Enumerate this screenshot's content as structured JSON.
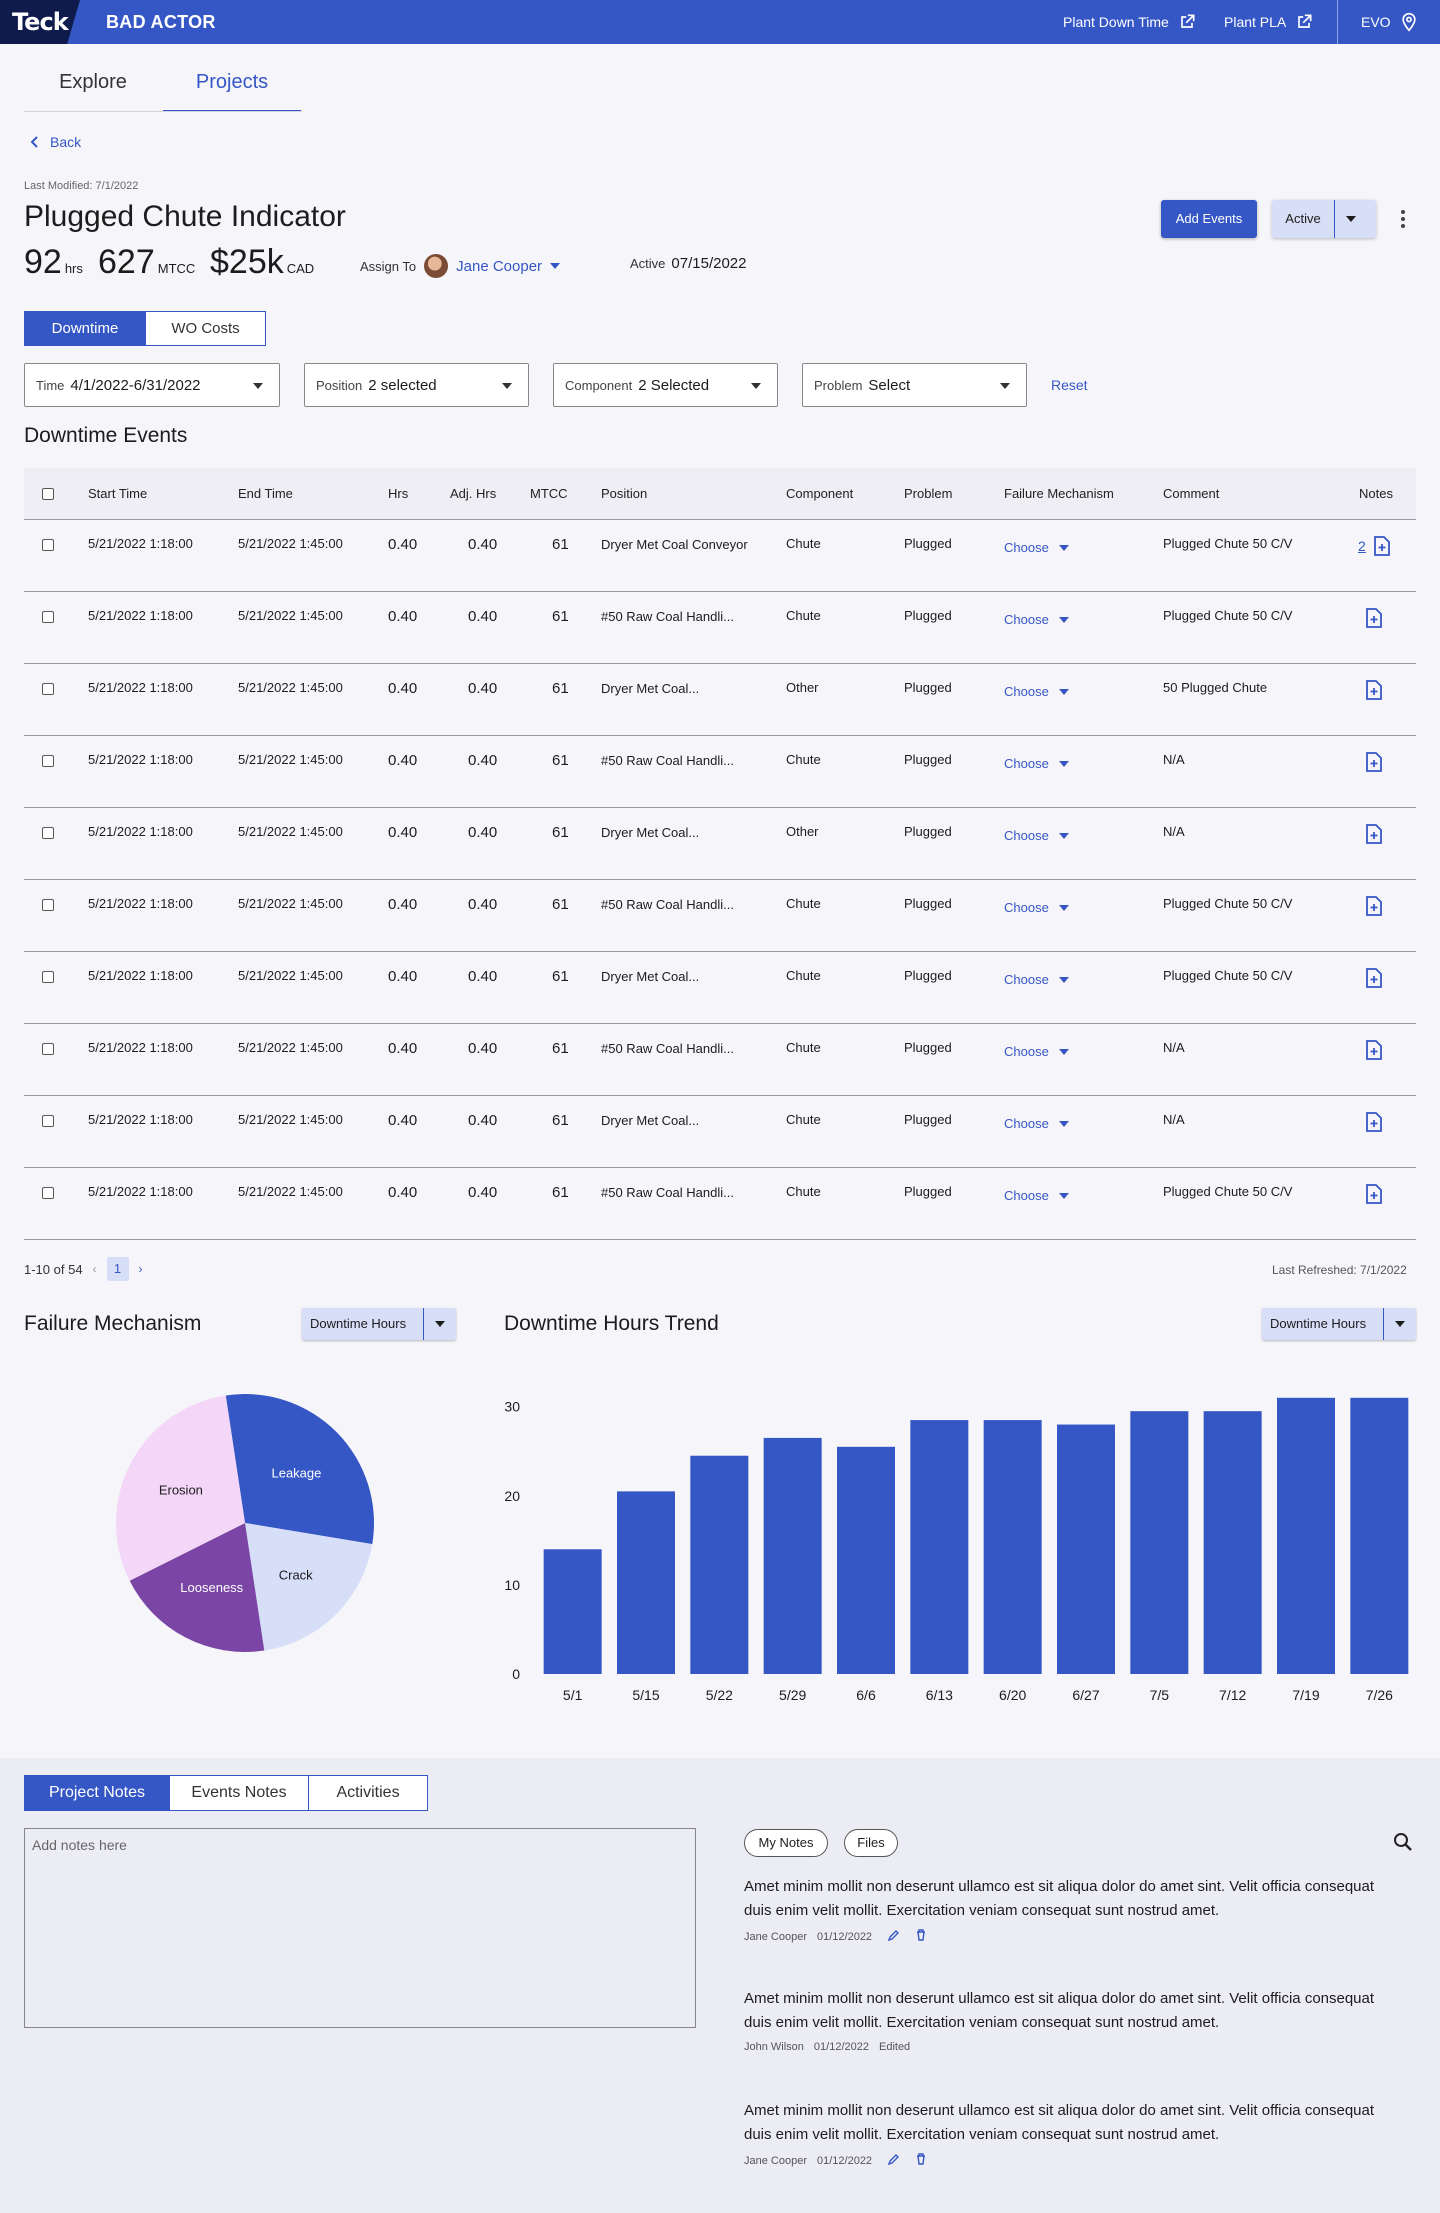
{
  "header": {
    "logo": "Teck",
    "app_title": "BAD ACTOR",
    "links": [
      {
        "label": "Plant Down Time",
        "icon": "external-link-icon"
      },
      {
        "label": "Plant PLA",
        "icon": "external-link-icon"
      },
      {
        "label": "EVO",
        "icon": "location-pin-icon"
      }
    ]
  },
  "nav": {
    "tabs": [
      "Explore",
      "Projects"
    ],
    "active": "Projects"
  },
  "back_label": "Back",
  "project": {
    "last_modified": "Last Modified: 7/1/2022",
    "title": "Plugged Chute Indicator",
    "metrics": [
      {
        "value": "92",
        "unit": "hrs"
      },
      {
        "value": "627",
        "unit": "MTCC"
      },
      {
        "value": "$25k",
        "unit": "CAD"
      }
    ],
    "assign_label": "Assign To",
    "assignee": "Jane Cooper",
    "active_label": "Active",
    "active_date": "07/15/2022",
    "add_events": "Add Events",
    "status": "Active"
  },
  "view_toggle": [
    "Downtime",
    "WO Costs"
  ],
  "filters": [
    {
      "label": "Time",
      "value": "4/1/2022-6/31/2022"
    },
    {
      "label": "Position",
      "value": "2 selected"
    },
    {
      "label": "Component",
      "value": "2 Selected"
    },
    {
      "label": "Problem",
      "value": "Select"
    }
  ],
  "reset_label": "Reset",
  "events": {
    "title": "Downtime Events",
    "columns": [
      "Start Time",
      "End Time",
      "Hrs",
      "Adj. Hrs",
      "MTCC",
      "Position",
      "Component",
      "Problem",
      "Failure Mechanism",
      "Comment",
      "Notes"
    ],
    "rows": [
      {
        "start": "5/21/2022 1:18:00",
        "end": "5/21/2022 1:45:00",
        "hrs": "0.40",
        "adj": "0.40",
        "mtcc": "61",
        "position": "Dryer Met Coal Conveyor",
        "component": "Chute",
        "problem": "Plugged",
        "mechanism": "Choose",
        "comment": "Plugged Chute 50 C/V",
        "notes": "2"
      },
      {
        "start": "5/21/2022 1:18:00",
        "end": "5/21/2022 1:45:00",
        "hrs": "0.40",
        "adj": "0.40",
        "mtcc": "61",
        "position": "#50 Raw Coal Handli...",
        "component": "Chute",
        "problem": "Plugged",
        "mechanism": "Choose",
        "comment": "Plugged Chute 50 C/V",
        "notes": ""
      },
      {
        "start": "5/21/2022 1:18:00",
        "end": "5/21/2022 1:45:00",
        "hrs": "0.40",
        "adj": "0.40",
        "mtcc": "61",
        "position": "Dryer Met Coal...",
        "component": "Other",
        "problem": "Plugged",
        "mechanism": "Choose",
        "comment": "50 Plugged Chute",
        "notes": ""
      },
      {
        "start": "5/21/2022 1:18:00",
        "end": "5/21/2022 1:45:00",
        "hrs": "0.40",
        "adj": "0.40",
        "mtcc": "61",
        "position": "#50 Raw Coal Handli...",
        "component": "Chute",
        "problem": "Plugged",
        "mechanism": "Choose",
        "comment": "N/A",
        "notes": ""
      },
      {
        "start": "5/21/2022 1:18:00",
        "end": "5/21/2022 1:45:00",
        "hrs": "0.40",
        "adj": "0.40",
        "mtcc": "61",
        "position": "Dryer Met Coal...",
        "component": "Other",
        "problem": "Plugged",
        "mechanism": "Choose",
        "comment": "N/A",
        "notes": ""
      },
      {
        "start": "5/21/2022 1:18:00",
        "end": "5/21/2022 1:45:00",
        "hrs": "0.40",
        "adj": "0.40",
        "mtcc": "61",
        "position": "#50 Raw Coal Handli...",
        "component": "Chute",
        "problem": "Plugged",
        "mechanism": "Choose",
        "comment": "Plugged Chute 50 C/V",
        "notes": ""
      },
      {
        "start": "5/21/2022 1:18:00",
        "end": "5/21/2022 1:45:00",
        "hrs": "0.40",
        "adj": "0.40",
        "mtcc": "61",
        "position": "Dryer Met Coal...",
        "component": "Chute",
        "problem": "Plugged",
        "mechanism": "Choose",
        "comment": "Plugged Chute 50 C/V",
        "notes": ""
      },
      {
        "start": "5/21/2022 1:18:00",
        "end": "5/21/2022 1:45:00",
        "hrs": "0.40",
        "adj": "0.40",
        "mtcc": "61",
        "position": "#50 Raw Coal Handli...",
        "component": "Chute",
        "problem": "Plugged",
        "mechanism": "Choose",
        "comment": "N/A",
        "notes": ""
      },
      {
        "start": "5/21/2022 1:18:00",
        "end": "5/21/2022 1:45:00",
        "hrs": "0.40",
        "adj": "0.40",
        "mtcc": "61",
        "position": "Dryer Met Coal...",
        "component": "Chute",
        "problem": "Plugged",
        "mechanism": "Choose",
        "comment": "N/A",
        "notes": ""
      },
      {
        "start": "5/21/2022 1:18:00",
        "end": "5/21/2022 1:45:00",
        "hrs": "0.40",
        "adj": "0.40",
        "mtcc": "61",
        "position": "#50 Raw Coal Handli...",
        "component": "Chute",
        "problem": "Plugged",
        "mechanism": "Choose",
        "comment": "Plugged Chute 50 C/V",
        "notes": ""
      }
    ],
    "range_text": "1-10 of 54",
    "page": "1",
    "last_refreshed": "Last Refreshed: 7/1/2022"
  },
  "failure_chart": {
    "title": "Failure Mechanism",
    "metric": "Downtime Hours"
  },
  "trend_chart": {
    "title": "Downtime Hours Trend",
    "metric": "Downtime Hours"
  },
  "chart_data": [
    {
      "type": "pie",
      "title": "Failure Mechanism",
      "categories": [
        "Leakage",
        "Crack",
        "Looseness",
        "Erosion"
      ],
      "values": [
        30,
        20,
        20,
        30
      ],
      "colors": [
        "#3557c5",
        "#d7def7",
        "#7b45a6",
        "#f3d6f8"
      ]
    },
    {
      "type": "bar",
      "title": "Downtime Hours Trend",
      "categories": [
        "5/1",
        "5/15",
        "5/22",
        "5/29",
        "6/6",
        "6/13",
        "6/20",
        "6/27",
        "7/5",
        "7/12",
        "7/19",
        "7/26"
      ],
      "values": [
        14,
        20.5,
        24.5,
        26.5,
        25.5,
        28.5,
        28.5,
        28,
        29.5,
        29.5,
        31,
        31
      ],
      "yticks": [
        0,
        10,
        20,
        30
      ],
      "ylim": [
        0,
        33
      ],
      "color": "#3557c5",
      "xlabel": "",
      "ylabel": ""
    }
  ],
  "bottom": {
    "tabs": [
      "Project Notes",
      "Events Notes",
      "Activities"
    ],
    "placeholder": "Add notes here",
    "chips": [
      "My Notes",
      "Files"
    ],
    "notes": [
      {
        "text": "Amet minim mollit non deserunt ullamco est sit aliqua dolor do amet sint. Velit officia consequat duis enim velit mollit. Exercitation veniam consequat sunt nostrud amet.",
        "author": "Jane Cooper",
        "date": "01/12/2022",
        "extra": "",
        "editable": true
      },
      {
        "text": "Amet minim mollit non deserunt ullamco est sit aliqua dolor do amet sint. Velit officia consequat duis enim velit mollit. Exercitation veniam consequat sunt nostrud amet.",
        "author": "John Wilson",
        "date": "01/12/2022",
        "extra": "Edited",
        "editable": false
      },
      {
        "text": "Amet minim mollit non deserunt ullamco est sit aliqua dolor do amet sint. Velit officia consequat duis enim velit mollit. Exercitation veniam consequat sunt nostrud amet.",
        "author": "Jane Cooper",
        "date": "01/12/2022",
        "extra": "",
        "editable": true
      }
    ]
  }
}
